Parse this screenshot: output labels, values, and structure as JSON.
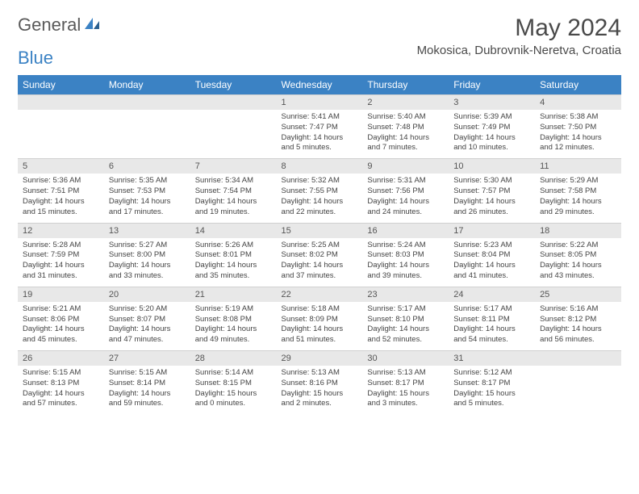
{
  "logo": {
    "text1": "General",
    "text2": "Blue"
  },
  "title": "May 2024",
  "location": "Mokosica, Dubrovnik-Neretva, Croatia",
  "weekdays": [
    "Sunday",
    "Monday",
    "Tuesday",
    "Wednesday",
    "Thursday",
    "Friday",
    "Saturday"
  ],
  "colors": {
    "header_bg": "#3b82c4",
    "header_text": "#ffffff",
    "daynum_bg": "#e8e8e8",
    "text": "#444444",
    "logo_gray": "#5a5a5a",
    "logo_blue": "#3b82c4"
  },
  "weeks": [
    [
      {
        "empty": true
      },
      {
        "empty": true
      },
      {
        "empty": true
      },
      {
        "n": "1",
        "sr": "Sunrise: 5:41 AM",
        "ss": "Sunset: 7:47 PM",
        "dl": "Daylight: 14 hours and 5 minutes."
      },
      {
        "n": "2",
        "sr": "Sunrise: 5:40 AM",
        "ss": "Sunset: 7:48 PM",
        "dl": "Daylight: 14 hours and 7 minutes."
      },
      {
        "n": "3",
        "sr": "Sunrise: 5:39 AM",
        "ss": "Sunset: 7:49 PM",
        "dl": "Daylight: 14 hours and 10 minutes."
      },
      {
        "n": "4",
        "sr": "Sunrise: 5:38 AM",
        "ss": "Sunset: 7:50 PM",
        "dl": "Daylight: 14 hours and 12 minutes."
      }
    ],
    [
      {
        "n": "5",
        "sr": "Sunrise: 5:36 AM",
        "ss": "Sunset: 7:51 PM",
        "dl": "Daylight: 14 hours and 15 minutes."
      },
      {
        "n": "6",
        "sr": "Sunrise: 5:35 AM",
        "ss": "Sunset: 7:53 PM",
        "dl": "Daylight: 14 hours and 17 minutes."
      },
      {
        "n": "7",
        "sr": "Sunrise: 5:34 AM",
        "ss": "Sunset: 7:54 PM",
        "dl": "Daylight: 14 hours and 19 minutes."
      },
      {
        "n": "8",
        "sr": "Sunrise: 5:32 AM",
        "ss": "Sunset: 7:55 PM",
        "dl": "Daylight: 14 hours and 22 minutes."
      },
      {
        "n": "9",
        "sr": "Sunrise: 5:31 AM",
        "ss": "Sunset: 7:56 PM",
        "dl": "Daylight: 14 hours and 24 minutes."
      },
      {
        "n": "10",
        "sr": "Sunrise: 5:30 AM",
        "ss": "Sunset: 7:57 PM",
        "dl": "Daylight: 14 hours and 26 minutes."
      },
      {
        "n": "11",
        "sr": "Sunrise: 5:29 AM",
        "ss": "Sunset: 7:58 PM",
        "dl": "Daylight: 14 hours and 29 minutes."
      }
    ],
    [
      {
        "n": "12",
        "sr": "Sunrise: 5:28 AM",
        "ss": "Sunset: 7:59 PM",
        "dl": "Daylight: 14 hours and 31 minutes."
      },
      {
        "n": "13",
        "sr": "Sunrise: 5:27 AM",
        "ss": "Sunset: 8:00 PM",
        "dl": "Daylight: 14 hours and 33 minutes."
      },
      {
        "n": "14",
        "sr": "Sunrise: 5:26 AM",
        "ss": "Sunset: 8:01 PM",
        "dl": "Daylight: 14 hours and 35 minutes."
      },
      {
        "n": "15",
        "sr": "Sunrise: 5:25 AM",
        "ss": "Sunset: 8:02 PM",
        "dl": "Daylight: 14 hours and 37 minutes."
      },
      {
        "n": "16",
        "sr": "Sunrise: 5:24 AM",
        "ss": "Sunset: 8:03 PM",
        "dl": "Daylight: 14 hours and 39 minutes."
      },
      {
        "n": "17",
        "sr": "Sunrise: 5:23 AM",
        "ss": "Sunset: 8:04 PM",
        "dl": "Daylight: 14 hours and 41 minutes."
      },
      {
        "n": "18",
        "sr": "Sunrise: 5:22 AM",
        "ss": "Sunset: 8:05 PM",
        "dl": "Daylight: 14 hours and 43 minutes."
      }
    ],
    [
      {
        "n": "19",
        "sr": "Sunrise: 5:21 AM",
        "ss": "Sunset: 8:06 PM",
        "dl": "Daylight: 14 hours and 45 minutes."
      },
      {
        "n": "20",
        "sr": "Sunrise: 5:20 AM",
        "ss": "Sunset: 8:07 PM",
        "dl": "Daylight: 14 hours and 47 minutes."
      },
      {
        "n": "21",
        "sr": "Sunrise: 5:19 AM",
        "ss": "Sunset: 8:08 PM",
        "dl": "Daylight: 14 hours and 49 minutes."
      },
      {
        "n": "22",
        "sr": "Sunrise: 5:18 AM",
        "ss": "Sunset: 8:09 PM",
        "dl": "Daylight: 14 hours and 51 minutes."
      },
      {
        "n": "23",
        "sr": "Sunrise: 5:17 AM",
        "ss": "Sunset: 8:10 PM",
        "dl": "Daylight: 14 hours and 52 minutes."
      },
      {
        "n": "24",
        "sr": "Sunrise: 5:17 AM",
        "ss": "Sunset: 8:11 PM",
        "dl": "Daylight: 14 hours and 54 minutes."
      },
      {
        "n": "25",
        "sr": "Sunrise: 5:16 AM",
        "ss": "Sunset: 8:12 PM",
        "dl": "Daylight: 14 hours and 56 minutes."
      }
    ],
    [
      {
        "n": "26",
        "sr": "Sunrise: 5:15 AM",
        "ss": "Sunset: 8:13 PM",
        "dl": "Daylight: 14 hours and 57 minutes."
      },
      {
        "n": "27",
        "sr": "Sunrise: 5:15 AM",
        "ss": "Sunset: 8:14 PM",
        "dl": "Daylight: 14 hours and 59 minutes."
      },
      {
        "n": "28",
        "sr": "Sunrise: 5:14 AM",
        "ss": "Sunset: 8:15 PM",
        "dl": "Daylight: 15 hours and 0 minutes."
      },
      {
        "n": "29",
        "sr": "Sunrise: 5:13 AM",
        "ss": "Sunset: 8:16 PM",
        "dl": "Daylight: 15 hours and 2 minutes."
      },
      {
        "n": "30",
        "sr": "Sunrise: 5:13 AM",
        "ss": "Sunset: 8:17 PM",
        "dl": "Daylight: 15 hours and 3 minutes."
      },
      {
        "n": "31",
        "sr": "Sunrise: 5:12 AM",
        "ss": "Sunset: 8:17 PM",
        "dl": "Daylight: 15 hours and 5 minutes."
      },
      {
        "empty": true
      }
    ]
  ]
}
